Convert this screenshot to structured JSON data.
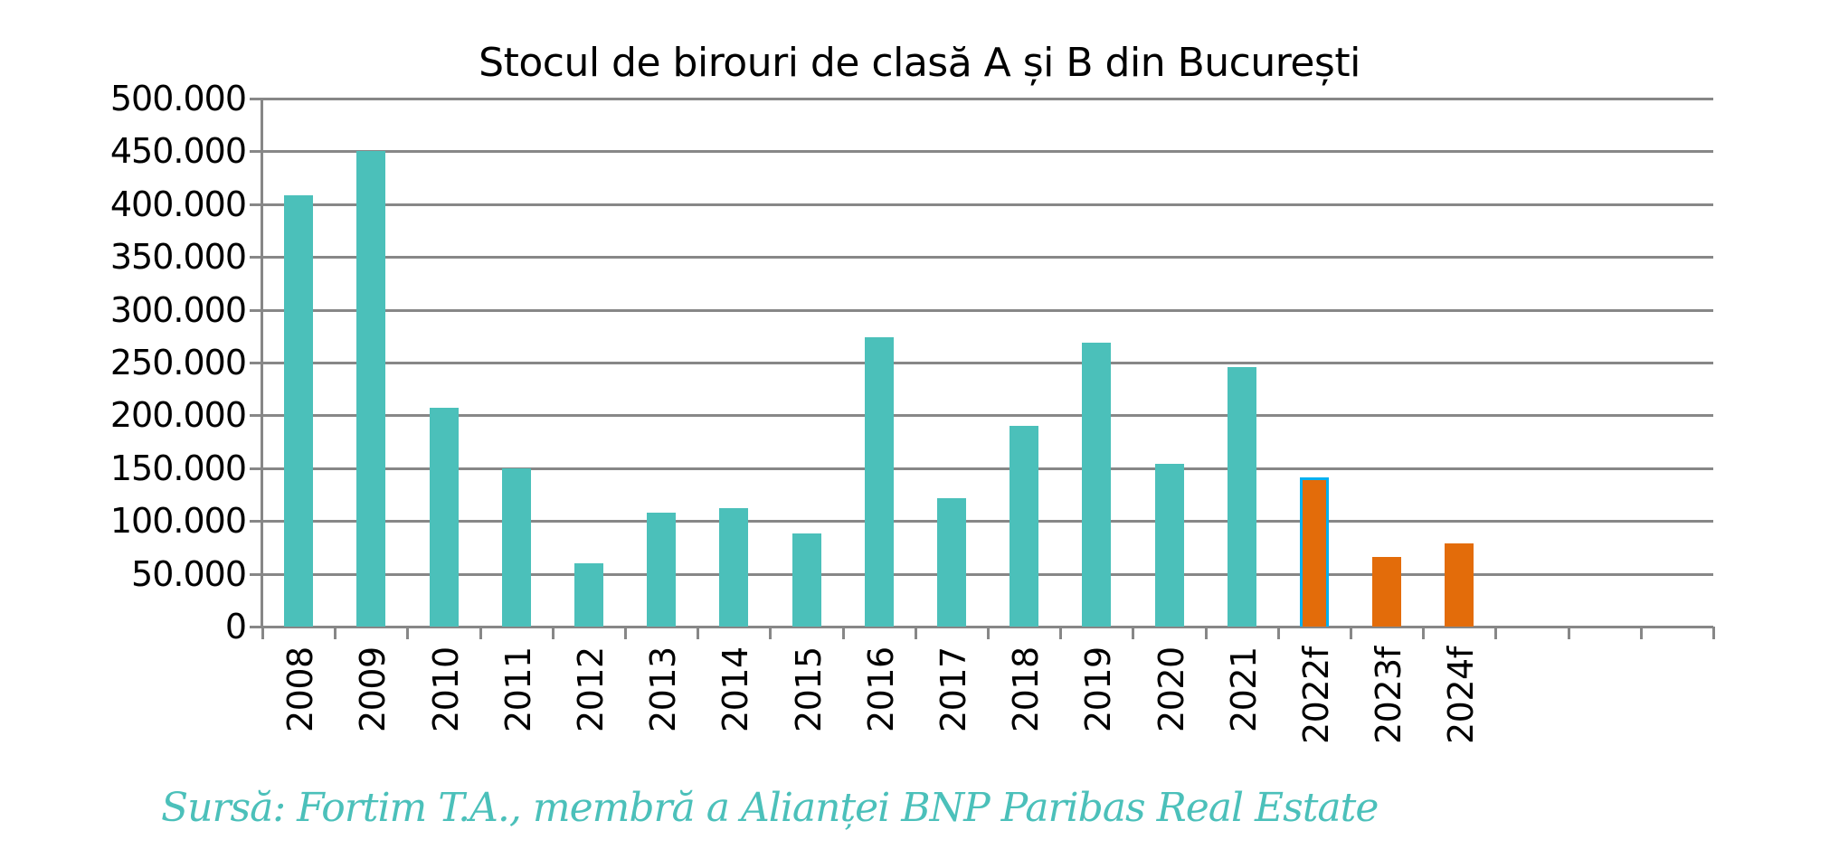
{
  "chart_data": {
    "type": "bar",
    "title": "Stocul de birouri de clasă A și B din București",
    "xlabel": "",
    "ylabel": "",
    "ylim": [
      0,
      500000
    ],
    "yticks": [
      "0",
      "50.000",
      "100.000",
      "150.000",
      "200.000",
      "250.000",
      "300.000",
      "350.000",
      "400.000",
      "450.000",
      "500.000"
    ],
    "grid": true,
    "legend": null,
    "categories": [
      "2008",
      "2009",
      "2010",
      "2011",
      "2012",
      "2013",
      "2014",
      "2015",
      "2016",
      "2017",
      "2018",
      "2019",
      "2020",
      "2021",
      "2022f",
      "2023f",
      "2024f"
    ],
    "values": [
      408000,
      450000,
      207000,
      150000,
      60000,
      108000,
      112000,
      88000,
      274000,
      122000,
      190000,
      269000,
      154000,
      246000,
      141000,
      66000,
      79000
    ],
    "bar_colors": [
      "#4BC0BA",
      "#4BC0BA",
      "#4BC0BA",
      "#4BC0BA",
      "#4BC0BA",
      "#4BC0BA",
      "#4BC0BA",
      "#4BC0BA",
      "#4BC0BA",
      "#4BC0BA",
      "#4BC0BA",
      "#4BC0BA",
      "#4BC0BA",
      "#4BC0BA",
      "#E36C0A",
      "#E36C0A",
      "#E36C0A"
    ],
    "highlighted_outline": {
      "category": "2022f",
      "color": "#00B0F0"
    },
    "empty_slots_after_data": 3,
    "source": "Sursă: Fortim T.A., membră a Alianței BNP Paribas Real Estate"
  },
  "colors": {
    "actual": "#4BC0BA",
    "forecast": "#E36C0A",
    "outline": "#00B0F0",
    "grid": "#878787",
    "source_text": "#4BC0BA"
  }
}
